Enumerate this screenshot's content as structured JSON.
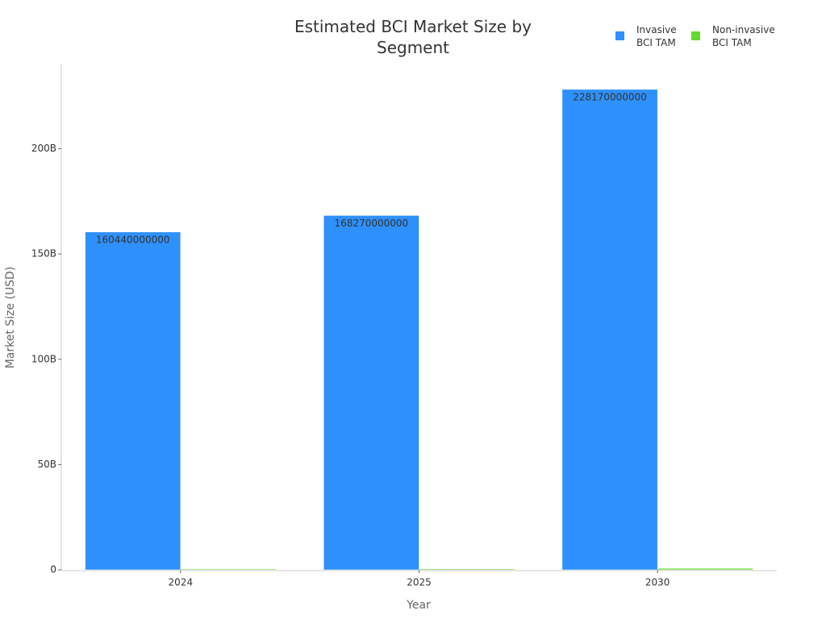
{
  "chart_data": {
    "type": "bar",
    "title": "Estimated BCI Market Size by Segment",
    "x_label": "Year",
    "y_label": "Market Size (USD)",
    "categories": [
      "2024",
      "2025",
      "2030"
    ],
    "series": [
      {
        "name": "Invasive BCI TAM",
        "color": "#2e90fa",
        "values": [
          160440000000,
          168270000000,
          228170000000
        ]
      },
      {
        "name": "Non-invasive BCI TAM",
        "color": "#66d92e",
        "values": [
          400000000,
          450000000,
          700000000
        ]
      }
    ],
    "ylim": [
      0,
      240000000000
    ],
    "yticks": [
      0,
      {
        "value": 50000000000,
        "label": "50B"
      },
      {
        "value": 100000000000,
        "label": "100B"
      },
      {
        "value": 150000000000,
        "label": "150B"
      },
      {
        "value": 200000000000,
        "label": "200B"
      }
    ],
    "grid": false,
    "legend": "top-right"
  }
}
